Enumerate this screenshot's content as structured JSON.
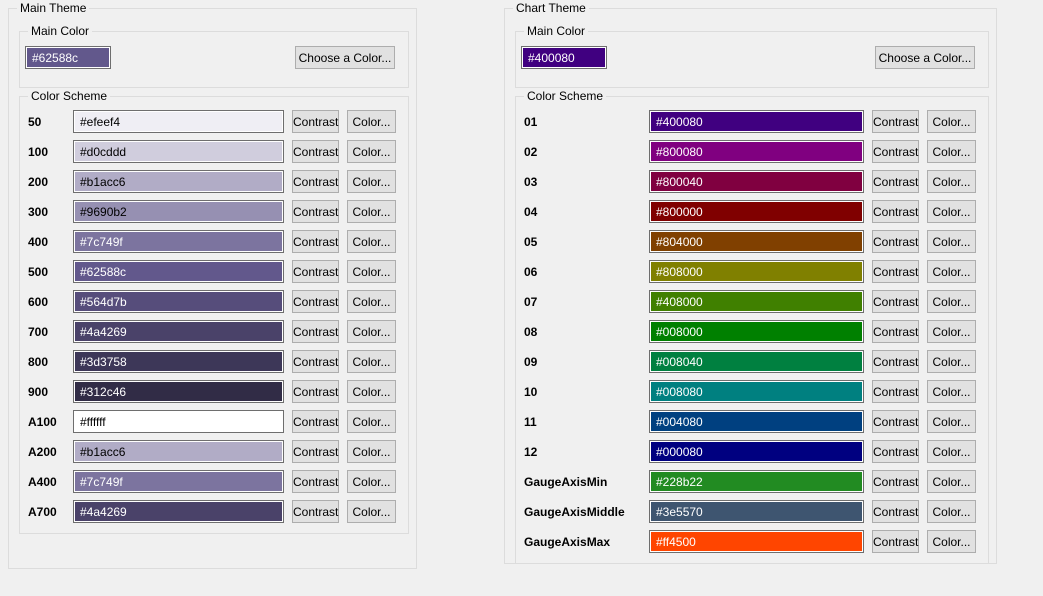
{
  "panels": [
    {
      "title": "Main Theme",
      "main_color": {
        "group_title": "Main Color",
        "hex": "#62588c",
        "choose_button": "Choose a Color..."
      },
      "color_scheme": {
        "group_title": "Color Scheme",
        "contrast_button": "Contrast",
        "color_button": "Color...",
        "rows": [
          {
            "name": "50",
            "hex": "#efeef4"
          },
          {
            "name": "100",
            "hex": "#d0cddd"
          },
          {
            "name": "200",
            "hex": "#b1acc6"
          },
          {
            "name": "300",
            "hex": "#9690b2"
          },
          {
            "name": "400",
            "hex": "#7c749f"
          },
          {
            "name": "500",
            "hex": "#62588c"
          },
          {
            "name": "600",
            "hex": "#564d7b"
          },
          {
            "name": "700",
            "hex": "#4a4269"
          },
          {
            "name": "800",
            "hex": "#3d3758"
          },
          {
            "name": "900",
            "hex": "#312c46"
          },
          {
            "name": "A100",
            "hex": "#ffffff"
          },
          {
            "name": "A200",
            "hex": "#b1acc6"
          },
          {
            "name": "A400",
            "hex": "#7c749f"
          },
          {
            "name": "A700",
            "hex": "#4a4269"
          }
        ]
      }
    },
    {
      "title": "Chart Theme",
      "main_color": {
        "group_title": "Main Color",
        "hex": "#400080",
        "choose_button": "Choose a Color..."
      },
      "color_scheme": {
        "group_title": "Color Scheme",
        "contrast_button": "Contrast",
        "color_button": "Color...",
        "rows": [
          {
            "name": "01",
            "hex": "#400080"
          },
          {
            "name": "02",
            "hex": "#800080"
          },
          {
            "name": "03",
            "hex": "#800040"
          },
          {
            "name": "04",
            "hex": "#800000"
          },
          {
            "name": "05",
            "hex": "#804000"
          },
          {
            "name": "06",
            "hex": "#808000"
          },
          {
            "name": "07",
            "hex": "#408000"
          },
          {
            "name": "08",
            "hex": "#008000"
          },
          {
            "name": "09",
            "hex": "#008040"
          },
          {
            "name": "10",
            "hex": "#008080"
          },
          {
            "name": "11",
            "hex": "#004080"
          },
          {
            "name": "12",
            "hex": "#000080"
          },
          {
            "name": "GaugeAxisMin",
            "hex": "#228b22"
          },
          {
            "name": "GaugeAxisMiddle",
            "hex": "#3e5570"
          },
          {
            "name": "GaugeAxisMax",
            "hex": "#ff4500"
          }
        ]
      }
    }
  ],
  "colors": {
    "window_bg": "#f0f0f0",
    "groupbox_border": "#dcdcdc",
    "button_face": "#e1e1e1",
    "button_border": "#adadad",
    "field_border": "#6e6e6e"
  }
}
